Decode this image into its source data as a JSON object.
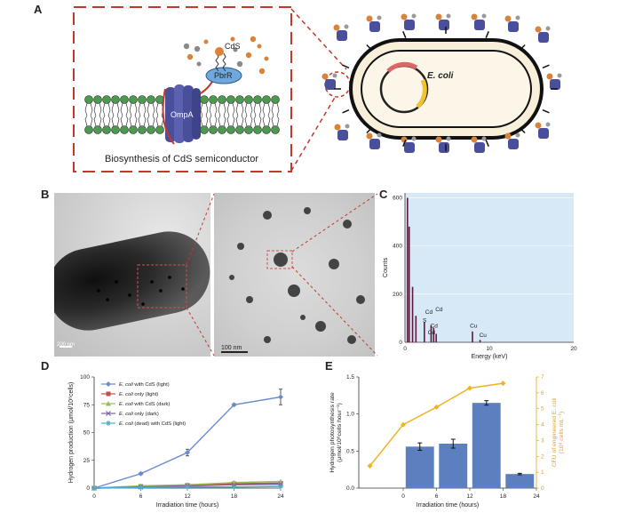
{
  "panel_a": {
    "letter": "A",
    "caption": "Biosynthesis of CdS semiconductor",
    "labels": {
      "cds": "CdS",
      "pbrr": "PbrR",
      "ompa": "OmpA",
      "ecoli": "E. coli"
    }
  },
  "panel_b": {
    "letter": "B",
    "scale_left": "200 nm",
    "scale_right": "100 nm"
  },
  "panel_c": {
    "letter": "C",
    "chart_data": {
      "type": "line",
      "xlabel": "Energy (keV)",
      "ylabel": "Counts",
      "xlim": [
        0,
        20
      ],
      "ylim": [
        0,
        620
      ],
      "xticks": [
        0,
        10,
        20
      ],
      "yticks": [
        0,
        200,
        400,
        600
      ],
      "peaks": [
        {
          "x": 0.3,
          "y": 600
        },
        {
          "x": 0.5,
          "y": 480
        },
        {
          "x": 0.9,
          "y": 230
        },
        {
          "x": 1.3,
          "y": 110
        },
        {
          "x": 2.3,
          "y": 85
        },
        {
          "x": 3.1,
          "y": 70
        },
        {
          "x": 3.4,
          "y": 60
        },
        {
          "x": 3.7,
          "y": 35
        },
        {
          "x": 8.0,
          "y": 45
        },
        {
          "x": 8.9,
          "y": 10
        }
      ],
      "peak_labels": [
        {
          "text": "Cd",
          "x": 2.4,
          "y": 118
        },
        {
          "text": "Cd",
          "x": 3.6,
          "y": 130
        },
        {
          "text": "S",
          "x": 2.1,
          "y": 83
        },
        {
          "text": "Cd",
          "x": 3.0,
          "y": 60
        },
        {
          "text": "Cd",
          "x": 2.7,
          "y": 34
        },
        {
          "text": "Cu",
          "x": 7.7,
          "y": 60
        },
        {
          "text": "Cu",
          "x": 8.8,
          "y": 22
        }
      ]
    }
  },
  "panel_d": {
    "letter": "D",
    "chart_data": {
      "type": "line",
      "xlabel": "Irradiation time (hours)",
      "ylabel": "Hydrogen production (μmol/10⁸cells)",
      "x": [
        0,
        6,
        12,
        18,
        24
      ],
      "xticks": [
        0,
        6,
        12,
        18,
        24
      ],
      "ylim": [
        0,
        100
      ],
      "yticks": [
        0,
        25,
        50,
        75,
        100
      ],
      "series": [
        {
          "name": "E. coli with CdS (light)",
          "values": [
            0,
            13,
            32,
            75,
            82
          ],
          "errors": [
            0,
            1,
            3,
            1,
            7
          ],
          "color": "#6b8bd0",
          "marker": "diamond"
        },
        {
          "name": "E. coli only (light)",
          "values": [
            0,
            1.5,
            2.5,
            4,
            4.5
          ],
          "errors": [
            0,
            0,
            0,
            0,
            0
          ],
          "color": "#c0504d",
          "marker": "square"
        },
        {
          "name": "E. coli with CdS (dark)",
          "values": [
            0,
            2,
            3,
            5,
            6
          ],
          "errors": [
            0,
            0,
            0,
            0,
            0
          ],
          "color": "#9bbb59",
          "marker": "triangle"
        },
        {
          "name": "E. coli only (dark)",
          "values": [
            0,
            1,
            2,
            3,
            3.5
          ],
          "errors": [
            0,
            0,
            0,
            0,
            0
          ],
          "color": "#8064a2",
          "marker": "x"
        },
        {
          "name": "E. coli (dead) with CdS (light)",
          "values": [
            0,
            0.5,
            1,
            1,
            1.5
          ],
          "errors": [
            0,
            0,
            0,
            0,
            0
          ],
          "color": "#4bacc6",
          "marker": "star"
        }
      ]
    }
  },
  "panel_e": {
    "letter": "E",
    "chart_data": {
      "type": "bar",
      "xlabel": "Irradiation time (hours)",
      "ylabel": "Hydrogen photosynthesis rate (μmol/10⁸cells hour⁻¹)",
      "y2label": "CFU of engineered E. coli (10⁸ cells mL⁻¹)",
      "xticks": [
        0,
        6,
        12,
        18,
        24
      ],
      "ylim": [
        0,
        1.5
      ],
      "yticks": [
        0,
        0.5,
        1.0,
        1.5
      ],
      "y2lim": [
        0,
        7
      ],
      "y2ticks": [
        0,
        1,
        2,
        3,
        4,
        5,
        6,
        7
      ],
      "bars": [
        {
          "x": 3,
          "value": 0.56,
          "error": 0.05
        },
        {
          "x": 9,
          "value": 0.6,
          "error": 0.06
        },
        {
          "x": 15,
          "value": 1.15,
          "error": 0.03
        },
        {
          "x": 21,
          "value": 0.19,
          "error": 0.01
        }
      ],
      "line": {
        "x": [
          -6,
          0,
          6,
          12,
          18
        ],
        "values": [
          1.4,
          4.0,
          5.1,
          6.3,
          6.6
        ],
        "color": "#f0b323"
      },
      "bar_color": "#5b7fbf"
    }
  }
}
